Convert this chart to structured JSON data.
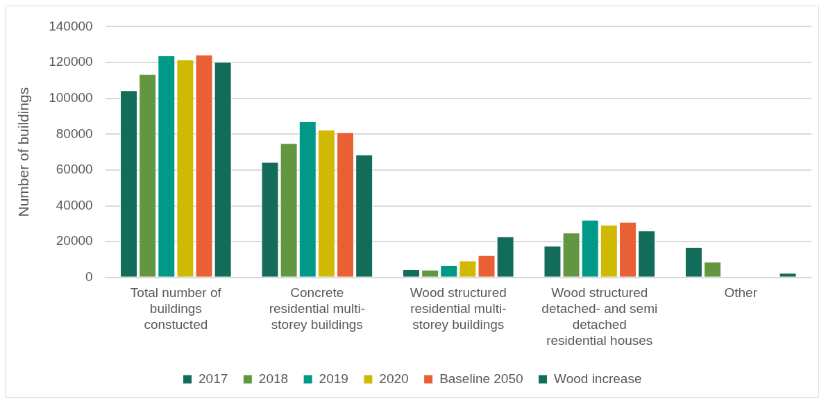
{
  "chart_data": {
    "type": "bar",
    "ylabel": "Number of buildings",
    "categories": [
      "Total number of buildings constucted",
      "Concrete residential multi-storey buildings",
      "Wood structured residential multi-storey buildings",
      "Wood structured detached- and semi detached residential houses",
      "Other"
    ],
    "series": [
      {
        "name": "2017",
        "color": "#136b5a",
        "values": [
          104400,
          64400,
          4600,
          17600,
          17000
        ]
      },
      {
        "name": "2018",
        "color": "#629640",
        "values": [
          113500,
          75000,
          4300,
          25000,
          8700
        ]
      },
      {
        "name": "2019",
        "color": "#009886",
        "values": [
          123900,
          87100,
          6900,
          32200,
          0
        ]
      },
      {
        "name": "2020",
        "color": "#cfb902",
        "values": [
          121700,
          82400,
          9400,
          29400,
          0
        ]
      },
      {
        "name": "Baseline 2050",
        "color": "#e96035",
        "values": [
          124400,
          81000,
          12400,
          31000,
          0
        ]
      },
      {
        "name": "Wood increase",
        "color": "#136b5a",
        "values": [
          120300,
          68600,
          22900,
          26200,
          2500
        ]
      }
    ],
    "ylim": [
      0,
      140000
    ],
    "yticks": [
      0,
      20000,
      40000,
      60000,
      80000,
      100000,
      120000,
      140000
    ],
    "grid": "y",
    "legend": "bottom"
  }
}
